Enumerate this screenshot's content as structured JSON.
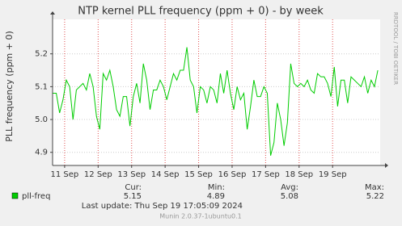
{
  "chart_data": {
    "type": "line",
    "title": "NTP kernel PLL frequency (ppm + 0) - by week",
    "y_label": "PLL frequency (ppm + 0)",
    "side_label": "RRDTOOL / TOBI OETIKER",
    "x": [
      10.65,
      10.75,
      10.85,
      10.95,
      11.05,
      11.15,
      11.25,
      11.35,
      11.45,
      11.55,
      11.65,
      11.75,
      11.85,
      11.95,
      12.05,
      12.15,
      12.25,
      12.35,
      12.45,
      12.55,
      12.65,
      12.75,
      12.85,
      12.95,
      13.05,
      13.15,
      13.25,
      13.35,
      13.45,
      13.55,
      13.65,
      13.75,
      13.85,
      13.95,
      14.05,
      14.15,
      14.25,
      14.35,
      14.45,
      14.55,
      14.65,
      14.75,
      14.85,
      14.95,
      15.05,
      15.15,
      15.25,
      15.35,
      15.45,
      15.55,
      15.65,
      15.75,
      15.85,
      15.95,
      16.05,
      16.15,
      16.25,
      16.35,
      16.45,
      16.55,
      16.65,
      16.75,
      16.85,
      16.95,
      17.05,
      17.15,
      17.25,
      17.35,
      17.45,
      17.55,
      17.65,
      17.75,
      17.85,
      17.95,
      18.05,
      18.15,
      18.25,
      18.35,
      18.45,
      18.55,
      18.65,
      18.75,
      18.85,
      18.95,
      19.05,
      19.15,
      19.25,
      19.35,
      19.45,
      19.55,
      19.65,
      19.75,
      19.85,
      19.95,
      20.05,
      20.15,
      20.25,
      20.35
    ],
    "series": [
      {
        "name": "pll-freq",
        "color": "#00cc00",
        "values": [
          5.08,
          5.08,
          5.02,
          5.06,
          5.12,
          5.1,
          5.0,
          5.09,
          5.1,
          5.11,
          5.09,
          5.14,
          5.1,
          5.01,
          4.97,
          5.14,
          5.12,
          5.15,
          5.1,
          5.03,
          5.01,
          5.07,
          5.07,
          4.98,
          5.07,
          5.11,
          5.05,
          5.17,
          5.12,
          5.03,
          5.09,
          5.09,
          5.12,
          5.1,
          5.06,
          5.1,
          5.14,
          5.12,
          5.15,
          5.15,
          5.22,
          5.12,
          5.1,
          5.02,
          5.1,
          5.09,
          5.05,
          5.1,
          5.09,
          5.05,
          5.14,
          5.08,
          5.15,
          5.08,
          5.03,
          5.1,
          5.06,
          5.08,
          4.97,
          5.04,
          5.12,
          5.07,
          5.07,
          5.1,
          5.08,
          4.89,
          4.93,
          5.05,
          5.0,
          4.92,
          4.99,
          5.17,
          5.11,
          5.1,
          5.11,
          5.1,
          5.12,
          5.09,
          5.08,
          5.14,
          5.13,
          5.13,
          5.11,
          5.07,
          5.16,
          5.04,
          5.12,
          5.12,
          5.05,
          5.13,
          5.12,
          5.11,
          5.1,
          5.13,
          5.08,
          5.12,
          5.1,
          5.15
        ]
      }
    ],
    "xlim": [
      10.64,
      20.42
    ],
    "xticks": [
      {
        "value": 11,
        "label": "11 Sep"
      },
      {
        "value": 12,
        "label": "12 Sep"
      },
      {
        "value": 13,
        "label": "13 Sep"
      },
      {
        "value": 14,
        "label": "14 Sep"
      },
      {
        "value": 15,
        "label": "15 Sep"
      },
      {
        "value": 16,
        "label": "16 Sep"
      },
      {
        "value": 17,
        "label": "17 Sep"
      },
      {
        "value": 18,
        "label": "18 Sep"
      },
      {
        "value": 19,
        "label": "19 Sep"
      }
    ],
    "ylim": [
      4.86,
      5.305
    ],
    "yticks": [
      4.9,
      {
        "value": 5,
        "label": "5.0"
      },
      5.1,
      5.2
    ],
    "grid": true,
    "stats": [
      {
        "label": "Cur:",
        "value": 5.15
      },
      {
        "label": "Min:",
        "value": 4.89
      },
      {
        "label": "Avg:",
        "value": 5.08
      },
      {
        "label": "Max:",
        "value": 5.22
      }
    ],
    "last_update": "Last update: Thu Sep 19 17:05:09 2024",
    "footer": "Munin 2.0.37-1ubuntu0.1"
  }
}
